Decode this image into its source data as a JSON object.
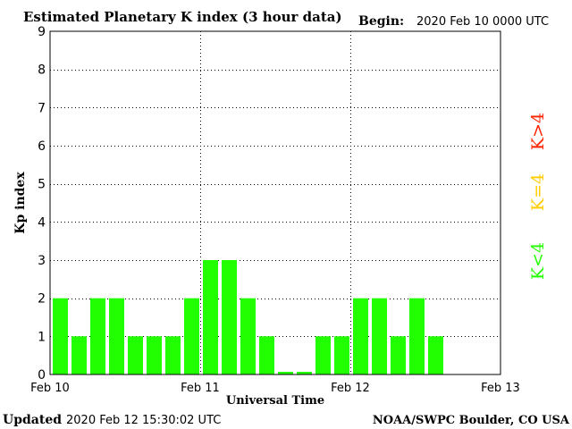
{
  "header": {
    "title": "Estimated Planetary K index (3 hour data)",
    "begin_label": "Begin:",
    "begin_value": "2020 Feb 10 0000 UTC"
  },
  "footer": {
    "updated_label": "Updated",
    "updated_value": "2020 Feb 12 15:30:02 UTC",
    "credit": "NOAA/SWPC Boulder, CO USA"
  },
  "legend": {
    "low": "K<4",
    "mid": "K=4",
    "high": "K>4"
  },
  "colors": {
    "bar_green": "#22ff00",
    "mid_yellow": "#ffcc00",
    "high_red": "#ff2200",
    "text": "#000000"
  },
  "chart_data": {
    "type": "bar",
    "title": "Estimated Planetary K index (3 hour data)",
    "xlabel": "Universal Time",
    "ylabel": "Kp index",
    "ylim": [
      0,
      9
    ],
    "yticks": [
      "0",
      "1",
      "2",
      "3",
      "4",
      "5",
      "6",
      "7",
      "8",
      "9"
    ],
    "xticks": [
      "Feb 10",
      "Feb 11",
      "Feb 12",
      "Feb 13"
    ],
    "slots_total": 24,
    "values": [
      2,
      1,
      2,
      2,
      1,
      1,
      1,
      2,
      3,
      3,
      2,
      1,
      0.07,
      0.07,
      1,
      1,
      2,
      2,
      1,
      2,
      1
    ],
    "grid": "dotted"
  }
}
